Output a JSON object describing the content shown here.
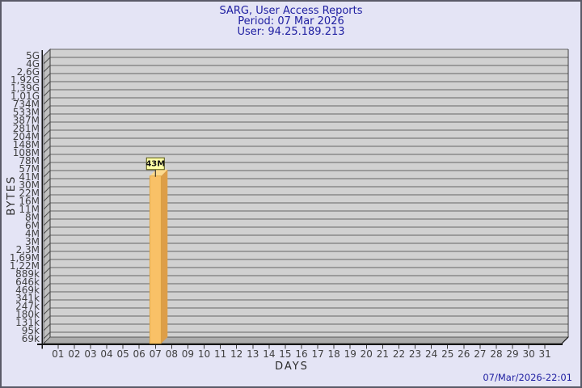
{
  "header": {
    "title": "SARG, User Access Reports",
    "period": "Period: 07 Mar 2026",
    "user": "User: 94.25.189.213"
  },
  "footer": {
    "timestamp": "07/Mar/2026-22:01"
  },
  "chart_data": {
    "type": "bar",
    "title": "SARG, User Access Reports",
    "subtitle": [
      "Period: 07 Mar 2026",
      "User: 94.25.189.213"
    ],
    "xlabel": "DAYS",
    "ylabel": "BYTES",
    "y_scale": "log",
    "y_top_value": 5000000000,
    "y_bottom_value": 69000,
    "y_tick_labels": [
      "5G",
      "4G",
      "2,6G",
      "1,92G",
      "1,39G",
      "1,01G",
      "734M",
      "533M",
      "387M",
      "281M",
      "204M",
      "148M",
      "108M",
      "78M",
      "57M",
      "41M",
      "30M",
      "22M",
      "16M",
      "11M",
      "8M",
      "6M",
      "4M",
      "3M",
      "2,3M",
      "1,69M",
      "1,22M",
      "889k",
      "646k",
      "469k",
      "341k",
      "247k",
      "180k",
      "131k",
      "95k",
      "69k"
    ],
    "x_tick_labels": [
      "01",
      "02",
      "03",
      "04",
      "05",
      "06",
      "07",
      "08",
      "09",
      "10",
      "11",
      "12",
      "13",
      "14",
      "15",
      "16",
      "17",
      "18",
      "19",
      "20",
      "21",
      "22",
      "23",
      "24",
      "25",
      "26",
      "27",
      "28",
      "29",
      "30",
      "31"
    ],
    "bars": [
      {
        "day": "07",
        "value": 43000000,
        "label": "43M"
      }
    ],
    "legend": "none",
    "grid": "horizontal",
    "colors": {
      "page_bg": "#E4E4F5",
      "page_border": "#5A5A68",
      "title_color": "#2020A2",
      "plot_bg": "#D1D1D1",
      "grid_line": "#656565",
      "wall": "#BFBFBF",
      "wall_tick": "#4C4C4C",
      "floor": "#ACACAC",
      "edge": "#3A3A3A",
      "axis": "#151515",
      "tick_text": "#3F3F3F",
      "bar_front": "#F9C167",
      "bar_side": "#DD9E48",
      "bar_top": "#FCD98D",
      "bar_edge": "#D9A23F",
      "flag_bg": "#FFFFA8",
      "flag_border": "#55550F",
      "flag_text": "#111111"
    }
  }
}
